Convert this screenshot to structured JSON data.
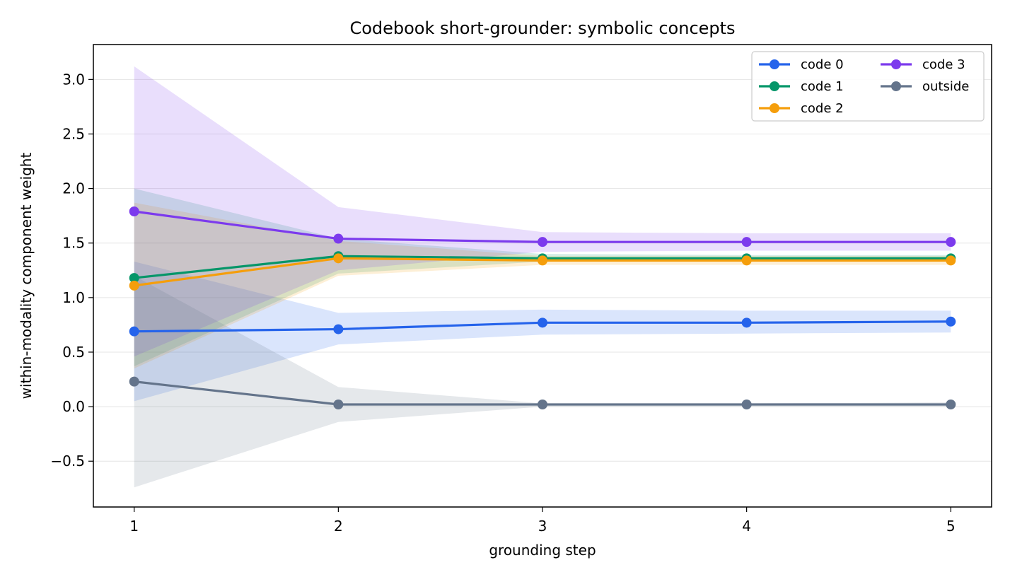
{
  "chart_data": {
    "type": "line",
    "title": "Codebook short-grounder: symbolic concepts",
    "xlabel": "grounding step",
    "ylabel": "within-modality component weight",
    "x": [
      1,
      2,
      3,
      4,
      5
    ],
    "xticks": [
      "1",
      "2",
      "3",
      "4",
      "5"
    ],
    "yticks": [
      "−0.5",
      "0.0",
      "0.5",
      "1.0",
      "1.5",
      "2.0",
      "2.5",
      "3.0"
    ],
    "ytick_values": [
      -0.5,
      0.0,
      0.5,
      1.0,
      1.5,
      2.0,
      2.5,
      3.0
    ],
    "xlim": [
      0.8,
      5.2
    ],
    "ylim": [
      -0.92,
      3.32
    ],
    "grid": "horizontal",
    "legend_position": "top-right",
    "series": [
      {
        "name": "code 0",
        "color": "#2563eb",
        "values": [
          0.69,
          0.71,
          0.77,
          0.77,
          0.78
        ],
        "band_low": [
          0.05,
          0.57,
          0.66,
          0.67,
          0.68
        ],
        "band_high": [
          1.33,
          0.86,
          0.89,
          0.88,
          0.88
        ]
      },
      {
        "name": "code 1",
        "color": "#059669",
        "values": [
          1.18,
          1.38,
          1.36,
          1.36,
          1.36
        ],
        "band_low": [
          0.37,
          1.22,
          1.33,
          1.33,
          1.33
        ],
        "band_high": [
          2.0,
          1.54,
          1.4,
          1.39,
          1.39
        ]
      },
      {
        "name": "code 2",
        "color": "#f59e0b",
        "values": [
          1.11,
          1.36,
          1.34,
          1.34,
          1.34
        ],
        "band_low": [
          0.35,
          1.2,
          1.3,
          1.3,
          1.3
        ],
        "band_high": [
          1.87,
          1.52,
          1.38,
          1.38,
          1.38
        ]
      },
      {
        "name": "code 3",
        "color": "#7c3aed",
        "values": [
          1.79,
          1.54,
          1.51,
          1.51,
          1.51
        ],
        "band_low": [
          0.46,
          1.25,
          1.42,
          1.43,
          1.43
        ],
        "band_high": [
          3.12,
          1.83,
          1.6,
          1.59,
          1.59
        ]
      },
      {
        "name": "outside",
        "color": "#64748b",
        "values": [
          0.23,
          0.02,
          0.02,
          0.02,
          0.02
        ],
        "band_low": [
          -0.74,
          -0.14,
          0.0,
          0.0,
          0.0
        ],
        "band_high": [
          1.2,
          0.18,
          0.03,
          0.03,
          0.04
        ]
      }
    ]
  }
}
